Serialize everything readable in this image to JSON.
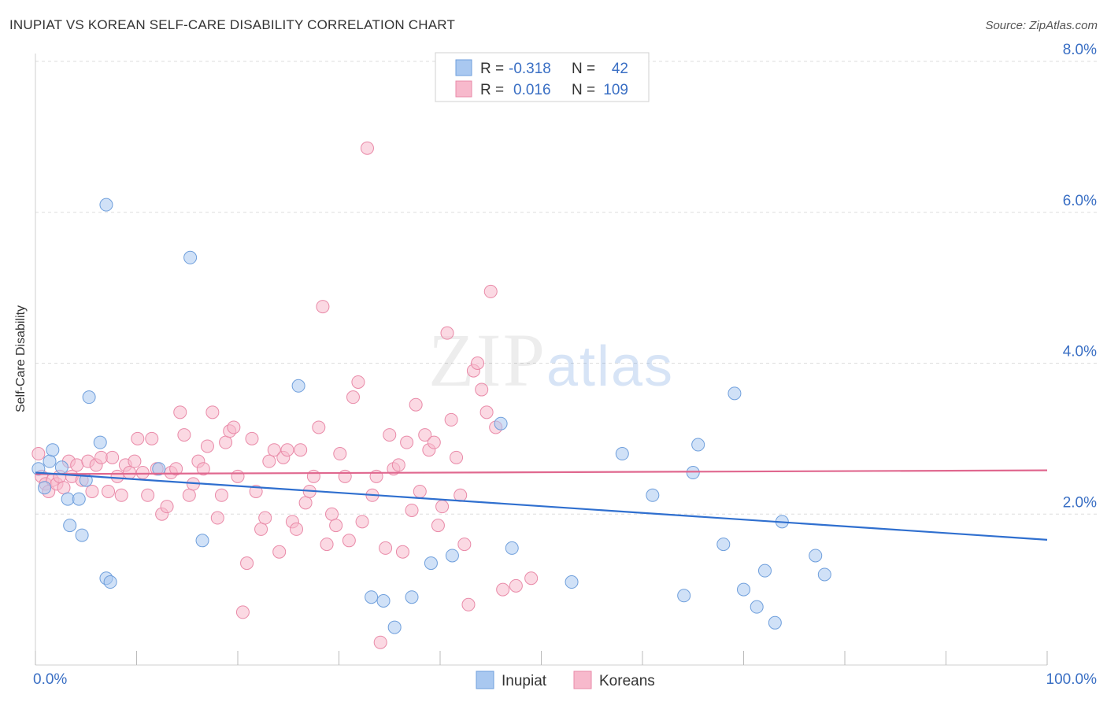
{
  "header": {
    "title": "INUPIAT VS KOREAN SELF-CARE DISABILITY CORRELATION CHART",
    "source": "Source: ZipAtlas.com"
  },
  "watermark": {
    "part1": "ZIP",
    "part2": "atlas"
  },
  "legend_stats": {
    "rows": [
      {
        "r_label": "R =",
        "r_value": "-0.318",
        "n_label": "N =",
        "n_value": "42",
        "color": "#a9c8f0"
      },
      {
        "r_label": "R =",
        "r_value": "0.016",
        "n_label": "N =",
        "n_value": "109",
        "color": "#f7b9cc"
      }
    ]
  },
  "bottom_legend": {
    "items": [
      "Inupiat",
      "Koreans"
    ]
  },
  "colors": {
    "inupiat_fill": "#a9c8f0",
    "inupiat_stroke": "#6f9fdc",
    "inupiat_line": "#2f6fcf",
    "korean_fill": "#f7b9cc",
    "korean_stroke": "#e98aa8",
    "korean_line": "#e0688f",
    "axis_text": "#3a6fc4",
    "grid": "#dddddd"
  },
  "chart_data": {
    "type": "scatter",
    "title": "INUPIAT VS KOREAN SELF-CARE DISABILITY CORRELATION CHART",
    "xlabel": "",
    "ylabel": "Self-Care Disability",
    "xlim": [
      0,
      100
    ],
    "ylim": [
      0,
      8.0
    ],
    "x_tick_labels": [
      "0.0%",
      "100.0%"
    ],
    "y_ticks": [
      2.0,
      4.0,
      6.0,
      8.0
    ],
    "y_tick_labels": [
      "2.0%",
      "4.0%",
      "6.0%",
      "8.0%"
    ],
    "grid": true,
    "legend_position": "top-center",
    "series": [
      {
        "name": "Inupiat",
        "r": -0.318,
        "n": 42,
        "trend": {
          "x": [
            0,
            100
          ],
          "y": [
            2.55,
            1.66
          ]
        },
        "points": [
          [
            0.3,
            2.6
          ],
          [
            0.9,
            2.35
          ],
          [
            1.4,
            2.7
          ],
          [
            1.7,
            2.85
          ],
          [
            2.6,
            2.62
          ],
          [
            3.2,
            2.2
          ],
          [
            3.4,
            1.85
          ],
          [
            4.3,
            2.2
          ],
          [
            4.6,
            1.72
          ],
          [
            5.0,
            2.45
          ],
          [
            5.3,
            3.55
          ],
          [
            6.4,
            2.95
          ],
          [
            7.0,
            6.1
          ],
          [
            7.0,
            1.15
          ],
          [
            7.4,
            1.1
          ],
          [
            12.2,
            2.6
          ],
          [
            15.3,
            5.4
          ],
          [
            16.5,
            1.65
          ],
          [
            26.0,
            3.7
          ],
          [
            33.2,
            0.9
          ],
          [
            34.4,
            0.85
          ],
          [
            35.5,
            0.5
          ],
          [
            37.2,
            0.9
          ],
          [
            39.1,
            1.35
          ],
          [
            41.2,
            1.45
          ],
          [
            46.0,
            3.2
          ],
          [
            47.1,
            1.55
          ],
          [
            53.0,
            1.1
          ],
          [
            58.0,
            2.8
          ],
          [
            61.0,
            2.25
          ],
          [
            64.1,
            0.92
          ],
          [
            65.0,
            2.55
          ],
          [
            65.5,
            2.92
          ],
          [
            68.0,
            1.6
          ],
          [
            69.1,
            3.6
          ],
          [
            70.0,
            1.0
          ],
          [
            71.3,
            0.77
          ],
          [
            72.1,
            1.25
          ],
          [
            73.1,
            0.56
          ],
          [
            73.8,
            1.9
          ],
          [
            77.1,
            1.45
          ],
          [
            78.0,
            1.2
          ]
        ]
      },
      {
        "name": "Koreans",
        "r": 0.016,
        "n": 109,
        "trend": {
          "x": [
            0,
            100
          ],
          "y": [
            2.53,
            2.58
          ]
        },
        "points": [
          [
            0.3,
            2.8
          ],
          [
            0.6,
            2.5
          ],
          [
            1.0,
            2.4
          ],
          [
            1.3,
            2.3
          ],
          [
            1.7,
            2.45
          ],
          [
            2.1,
            2.4
          ],
          [
            2.4,
            2.5
          ],
          [
            2.8,
            2.35
          ],
          [
            3.3,
            2.7
          ],
          [
            3.6,
            2.5
          ],
          [
            4.1,
            2.65
          ],
          [
            4.6,
            2.45
          ],
          [
            5.2,
            2.7
          ],
          [
            5.6,
            2.3
          ],
          [
            6.0,
            2.65
          ],
          [
            6.5,
            2.75
          ],
          [
            7.2,
            2.3
          ],
          [
            7.6,
            2.75
          ],
          [
            8.1,
            2.5
          ],
          [
            8.5,
            2.25
          ],
          [
            8.9,
            2.65
          ],
          [
            9.3,
            2.55
          ],
          [
            9.8,
            2.7
          ],
          [
            10.1,
            3.0
          ],
          [
            10.6,
            2.55
          ],
          [
            11.1,
            2.25
          ],
          [
            11.5,
            3.0
          ],
          [
            12.0,
            2.6
          ],
          [
            12.5,
            2.0
          ],
          [
            13.0,
            2.1
          ],
          [
            13.4,
            2.55
          ],
          [
            13.9,
            2.6
          ],
          [
            14.3,
            3.35
          ],
          [
            14.7,
            3.05
          ],
          [
            15.2,
            2.25
          ],
          [
            15.6,
            2.4
          ],
          [
            16.1,
            2.7
          ],
          [
            16.6,
            2.6
          ],
          [
            17.0,
            2.9
          ],
          [
            17.5,
            3.35
          ],
          [
            18.0,
            1.95
          ],
          [
            18.4,
            2.25
          ],
          [
            18.8,
            2.95
          ],
          [
            19.2,
            3.1
          ],
          [
            19.6,
            3.15
          ],
          [
            20.0,
            2.5
          ],
          [
            20.5,
            0.7
          ],
          [
            20.9,
            1.35
          ],
          [
            21.4,
            3.0
          ],
          [
            21.8,
            2.3
          ],
          [
            22.3,
            1.8
          ],
          [
            22.7,
            1.95
          ],
          [
            23.1,
            2.7
          ],
          [
            23.6,
            2.85
          ],
          [
            24.1,
            1.5
          ],
          [
            24.5,
            2.75
          ],
          [
            24.9,
            2.85
          ],
          [
            25.4,
            1.9
          ],
          [
            25.8,
            1.8
          ],
          [
            26.2,
            2.85
          ],
          [
            26.7,
            2.15
          ],
          [
            27.1,
            2.3
          ],
          [
            27.5,
            2.5
          ],
          [
            28.0,
            3.15
          ],
          [
            28.4,
            4.75
          ],
          [
            28.8,
            1.6
          ],
          [
            29.3,
            2.0
          ],
          [
            29.7,
            1.85
          ],
          [
            30.1,
            2.8
          ],
          [
            30.6,
            2.5
          ],
          [
            31.0,
            1.65
          ],
          [
            31.4,
            3.55
          ],
          [
            31.9,
            3.75
          ],
          [
            32.3,
            1.9
          ],
          [
            32.8,
            6.85
          ],
          [
            33.3,
            2.25
          ],
          [
            33.7,
            2.5
          ],
          [
            34.1,
            0.3
          ],
          [
            34.6,
            1.55
          ],
          [
            35.0,
            3.05
          ],
          [
            35.4,
            2.6
          ],
          [
            35.9,
            2.65
          ],
          [
            36.3,
            1.5
          ],
          [
            36.7,
            2.95
          ],
          [
            37.2,
            2.05
          ],
          [
            37.6,
            3.45
          ],
          [
            38.0,
            2.3
          ],
          [
            38.5,
            3.05
          ],
          [
            38.9,
            2.85
          ],
          [
            39.4,
            2.95
          ],
          [
            39.8,
            1.85
          ],
          [
            40.2,
            2.1
          ],
          [
            40.7,
            4.4
          ],
          [
            41.1,
            3.25
          ],
          [
            41.6,
            2.75
          ],
          [
            42.0,
            2.25
          ],
          [
            42.4,
            1.6
          ],
          [
            42.8,
            0.8
          ],
          [
            43.3,
            3.9
          ],
          [
            43.7,
            4.0
          ],
          [
            44.1,
            3.65
          ],
          [
            44.6,
            3.35
          ],
          [
            45.0,
            4.95
          ],
          [
            45.5,
            3.15
          ],
          [
            46.2,
            1.0
          ],
          [
            47.5,
            1.05
          ],
          [
            49.0,
            1.15
          ]
        ]
      }
    ]
  }
}
